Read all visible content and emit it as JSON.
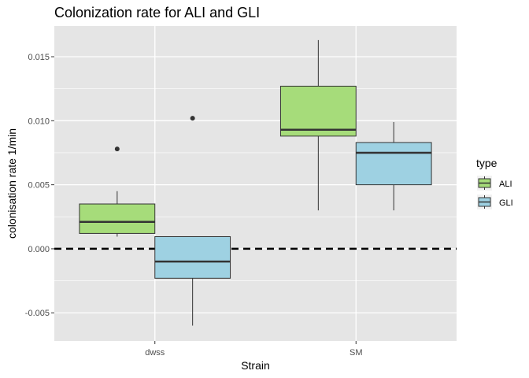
{
  "chart_data": {
    "type": "boxplot",
    "title": "Colonization rate for ALI and GLI",
    "xlabel": "Strain",
    "ylabel": "colonisation rate 1/min",
    "categories": [
      "dwss",
      "SM"
    ],
    "ylim": [
      -0.0072,
      0.0174
    ],
    "yticks": [
      -0.005,
      0.0,
      0.005,
      0.01,
      0.015
    ],
    "ytick_labels": [
      "-0.005",
      "0.000",
      "0.005",
      "0.010",
      "0.015"
    ],
    "reference_line": {
      "y": 0.0,
      "style": "dashed"
    },
    "grid": true,
    "legend": {
      "title": "type",
      "position": "right"
    },
    "series": [
      {
        "name": "ALI",
        "color": "#a6dc7a",
        "boxes": [
          {
            "category": "dwss",
            "lower_whisker": 0.00095,
            "q1": 0.0012,
            "median": 0.0021,
            "q3": 0.0035,
            "upper_whisker": 0.0045,
            "outliers": [
              0.0078
            ]
          },
          {
            "category": "SM",
            "lower_whisker": 0.003,
            "q1": 0.0088,
            "median": 0.0093,
            "q3": 0.0127,
            "upper_whisker": 0.0163,
            "outliers": []
          }
        ]
      },
      {
        "name": "GLI",
        "color": "#9ed1e2",
        "boxes": [
          {
            "category": "dwss",
            "lower_whisker": -0.006,
            "q1": -0.0023,
            "median": -0.001,
            "q3": 0.00095,
            "upper_whisker": 0.00095,
            "outliers": [
              0.0102
            ]
          },
          {
            "category": "SM",
            "lower_whisker": 0.003,
            "q1": 0.005,
            "median": 0.0075,
            "q3": 0.0083,
            "upper_whisker": 0.0099,
            "outliers": []
          }
        ]
      }
    ]
  },
  "colors": {
    "panel_background": "#e5e5e5",
    "grid": "#ffffff",
    "box_outline": "#333333"
  }
}
